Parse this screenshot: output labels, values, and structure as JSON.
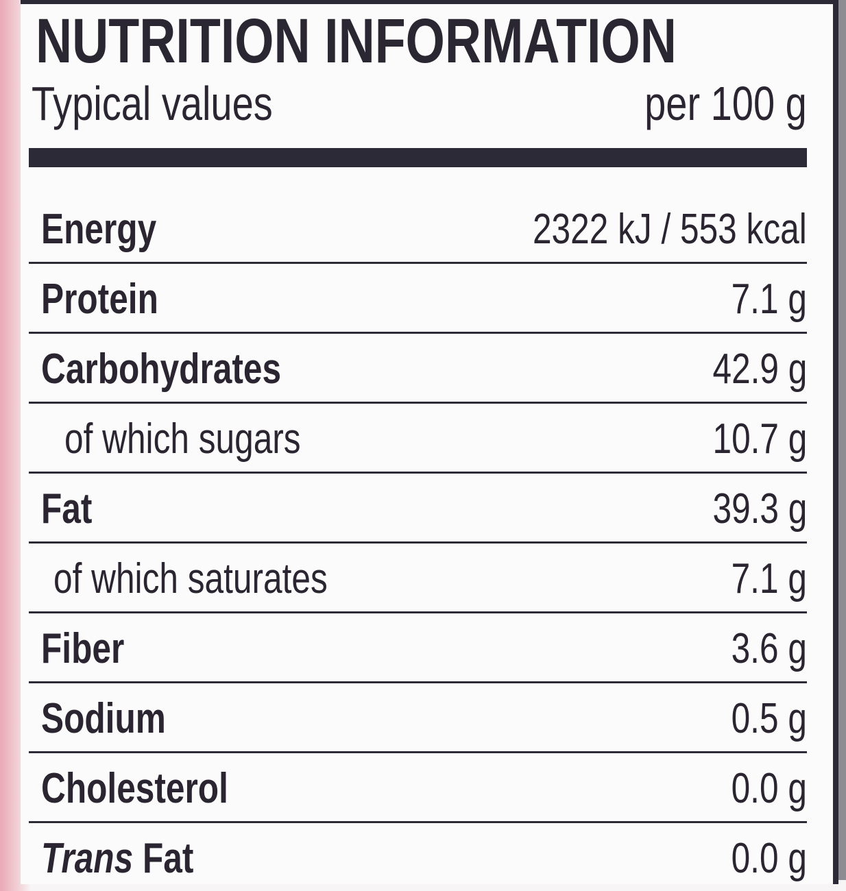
{
  "title": "NUTRITION INFORMATION",
  "header": {
    "left": "Typical values",
    "right": "per 100 g"
  },
  "rows": [
    {
      "name": "Energy",
      "value": "2322 kJ / 553 kcal",
      "sub": false
    },
    {
      "name": "Protein",
      "value": "7.1 g",
      "sub": false
    },
    {
      "name": "Carbohydrates",
      "value": "42.9 g",
      "sub": false
    },
    {
      "name": "of which sugars",
      "value": "10.7 g",
      "sub": true
    },
    {
      "name": "Fat",
      "value": "39.3 g",
      "sub": false
    },
    {
      "name": "of which saturates",
      "value": "7.1 g",
      "sub": true
    },
    {
      "name": "Fiber",
      "value": "3.6 g",
      "sub": false
    },
    {
      "name": "Sodium",
      "value": "0.5 g",
      "sub": false
    },
    {
      "name": "Cholesterol",
      "value": "0.0 g",
      "sub": false
    },
    {
      "name_italic": "Trans",
      "name": "Fat",
      "value": "0.0 g",
      "sub": false
    }
  ],
  "colors": {
    "ink": "#2c2a36",
    "paper": "#fbfbfb",
    "background_left": "#e9a9b4",
    "background_right": "#8e8c93"
  }
}
